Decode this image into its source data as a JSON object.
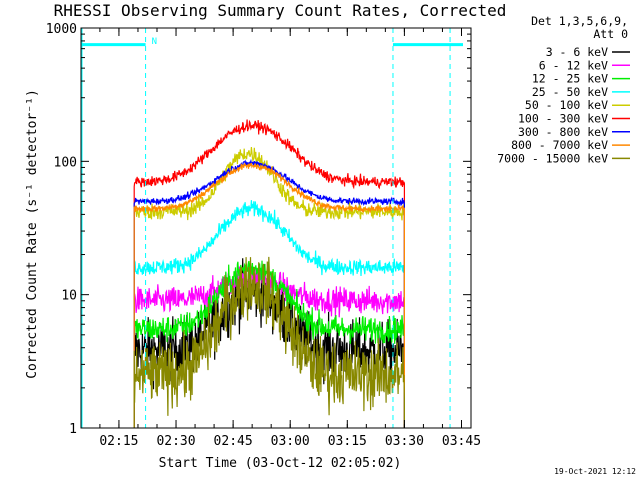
{
  "chart_data": {
    "type": "line",
    "title": "RHESSI Observing Summary Count Rates, Corrected",
    "xlabel": "Start Time (03-Oct-12 02:05:02)",
    "ylabel": "Corrected Count Rate (s⁻¹ detector⁻¹)",
    "y_scale": "log",
    "xlim": [
      "02:05:02",
      "03:47:30"
    ],
    "ylim": [
      1,
      1000
    ],
    "x_ticks": [
      "02:15",
      "02:30",
      "02:45",
      "03:00",
      "03:15",
      "03:30",
      "03:45"
    ],
    "y_ticks": [
      "1",
      "10",
      "100",
      "1000"
    ],
    "legend_header": [
      "Det 1,3,5,6,9,",
      "Att 0"
    ],
    "legend_position": "top-right",
    "timestamp": "19-Oct-2021 12:12",
    "data_start": "02:19:00",
    "data_end": "03:30:00",
    "series": [
      {
        "name": "3 - 6 keV",
        "color": "#000000",
        "baseline": 3.8,
        "peak": 10.5,
        "peak_time": "02:50",
        "width_min": 6.8,
        "noise": 0.11
      },
      {
        "name": "6 - 12 keV",
        "color": "#ff00ff",
        "baseline": 9.0,
        "peak": 13.5,
        "peak_time": "02:50",
        "width_min": 7.0,
        "noise": 0.05
      },
      {
        "name": "12 - 25 keV",
        "color": "#00ee00",
        "baseline": 5.5,
        "peak": 16.0,
        "peak_time": "02:50",
        "width_min": 6.8,
        "noise": 0.05
      },
      {
        "name": "25 - 50 keV",
        "color": "#00ffff",
        "baseline": 16.0,
        "peak": 44.0,
        "peak_time": "02:50",
        "width_min": 7.0,
        "noise": 0.03
      },
      {
        "name": "50 - 100 keV",
        "color": "#cccc00",
        "baseline": 42.0,
        "peak": 115.0,
        "peak_time": "02:49",
        "width_min": 5.5,
        "noise": 0.03
      },
      {
        "name": "100 - 300 keV",
        "color": "#ff0000",
        "baseline": 70.0,
        "peak": 185.0,
        "peak_time": "02:50",
        "width_min": 8.5,
        "noise": 0.02
      },
      {
        "name": "300 - 800 keV",
        "color": "#0000ff",
        "baseline": 50.0,
        "peak": 97.0,
        "peak_time": "02:50",
        "width_min": 8.0,
        "noise": 0.012
      },
      {
        "name": "800 - 7000 keV",
        "color": "#ff8800",
        "baseline": 44.0,
        "peak": 93.0,
        "peak_time": "02:50",
        "width_min": 8.0,
        "noise": 0.012
      },
      {
        "name": "7000 - 15000 keV",
        "color": "#888800",
        "baseline": 2.5,
        "peak": 12.0,
        "peak_time": "02:50",
        "width_min": 6.5,
        "noise": 0.12
      }
    ],
    "annotations": {
      "night_flag_label": "N",
      "night_level": 750,
      "night_intervals": [
        [
          "02:05:02",
          "02:22:00"
        ],
        [
          "03:27:00",
          "03:47:30"
        ]
      ],
      "cyan_markers": [
        "02:22:00",
        "03:27:00",
        "03:42:00"
      ]
    }
  }
}
